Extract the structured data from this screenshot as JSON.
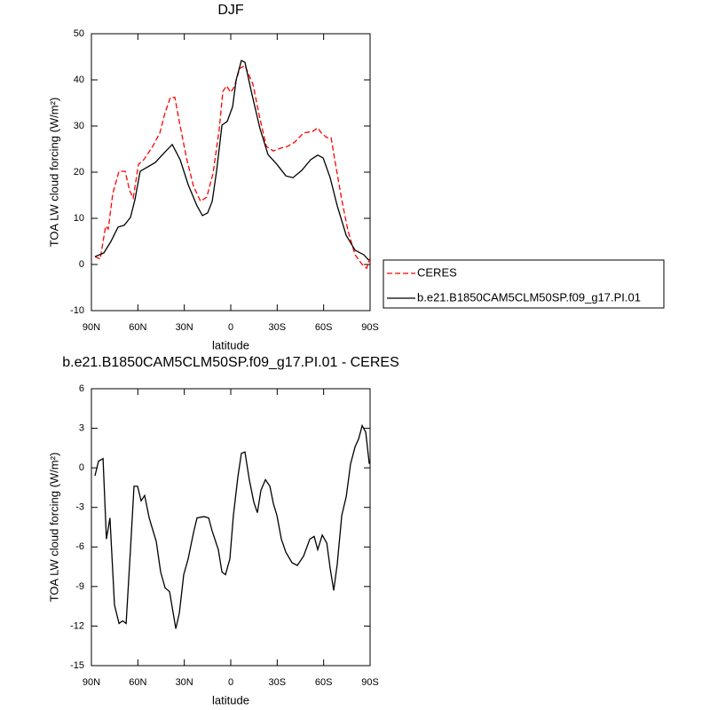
{
  "chart_data": [
    {
      "type": "line",
      "title": "DJF",
      "xlabel": "latitude",
      "ylabel": "TOA LW cloud forcing (W/m²)",
      "xlim": [
        90,
        -90
      ],
      "ylim": [
        -10,
        50
      ],
      "xticks": [
        {
          "value": 90,
          "label": "90N"
        },
        {
          "value": 60,
          "label": "60N"
        },
        {
          "value": 30,
          "label": "30N"
        },
        0,
        {
          "value": -30,
          "label": "30S"
        },
        {
          "value": -60,
          "label": "60S"
        },
        {
          "value": -90,
          "label": "90S"
        }
      ],
      "yticks": [
        -10,
        0,
        10,
        20,
        30,
        40,
        50
      ],
      "legend": "right",
      "series": [
        {
          "name": "CERES",
          "color": "#ff0000",
          "dash": true,
          "x": [
            87.7,
            84.3,
            80.8,
            79.1,
            76.2,
            72.2,
            68.2,
            65.3,
            63,
            59.6,
            56.2,
            50.4,
            45.8,
            42.4,
            39,
            36.1,
            32.7,
            28.6,
            24,
            19.5,
            15.5,
            11.4,
            7.4,
            5.1,
            2.8,
            0,
            -2.3,
            -5.8,
            -9.2,
            -14.4,
            -18.4,
            -23,
            -27.5,
            -32.1,
            -36.7,
            -41.3,
            -47,
            -52.8,
            -56.2,
            -58.5,
            -62,
            -64.8,
            -67.7,
            -71.7,
            -75.7,
            -80.3,
            -84.9,
            -87.8,
            -89.5
          ],
          "values": [
            1.7,
            1.2,
            8.3,
            7.7,
            15.4,
            20.2,
            20.2,
            16,
            14.4,
            21.7,
            22.7,
            25.6,
            28.5,
            32.9,
            36.2,
            36.2,
            30,
            23.1,
            16.9,
            13.7,
            14.6,
            19.8,
            29.4,
            37.5,
            38.7,
            37.3,
            38.5,
            42.5,
            43.1,
            39,
            32.3,
            25.6,
            24.6,
            25.2,
            25.6,
            26.5,
            28.5,
            28.8,
            29.6,
            28.5,
            27.5,
            27.5,
            21.7,
            14,
            7.3,
            2.1,
            0,
            -0.8,
            1.2
          ]
        },
        {
          "name": "b.e21.B1850CAM5CLM50SP.f09_g17.PI.01",
          "color": "#000000",
          "dash": false,
          "x": [
            87.7,
            82,
            77.4,
            72.8,
            68.8,
            64.8,
            61.9,
            58.5,
            54.4,
            48.7,
            43,
            37.8,
            32.7,
            27.5,
            21.8,
            18.3,
            14.9,
            12,
            9.2,
            5.7,
            2.3,
            -1.2,
            -3.5,
            -6.9,
            -9.2,
            -13.8,
            -18.9,
            -24.1,
            -29.8,
            -35.6,
            -40.2,
            -45.9,
            -51.6,
            -56.2,
            -59.7,
            -64.2,
            -68.8,
            -74.6,
            -80.3,
            -86,
            -88.9
          ],
          "values": [
            1.7,
            2.5,
            5,
            8.1,
            8.5,
            10.2,
            14,
            20.2,
            21,
            22.1,
            24.2,
            26,
            22.7,
            17.3,
            12.7,
            10.6,
            11.2,
            13.7,
            20.2,
            30.2,
            31,
            34.2,
            40,
            44.2,
            43.8,
            36.7,
            29.4,
            23.8,
            21.7,
            19.2,
            18.8,
            20.4,
            22.7,
            23.7,
            23.1,
            18.8,
            12.7,
            6.3,
            3.1,
            2.1,
            1
          ]
        }
      ]
    },
    {
      "type": "line",
      "title": "b.e21.B1850CAM5CLM50SP.f09_g17.PI.01 - CERES",
      "xlabel": "latitude",
      "ylabel": "TOA LW cloud forcing (W/m²)",
      "xlim": [
        90,
        -90
      ],
      "ylim": [
        -15,
        6
      ],
      "xticks": [
        {
          "value": 90,
          "label": "90N"
        },
        {
          "value": 60,
          "label": "60N"
        },
        {
          "value": 30,
          "label": "30N"
        },
        0,
        {
          "value": -30,
          "label": "30S"
        },
        {
          "value": -60,
          "label": "60S"
        },
        {
          "value": -90,
          "label": "90S"
        }
      ],
      "yticks": [
        -15,
        -12,
        -9,
        -6,
        -3,
        0,
        3,
        6
      ],
      "series": [
        {
          "color": "#000000",
          "dash": false,
          "x": [
            87.7,
            85.4,
            82.5,
            80.3,
            78,
            75.1,
            72.2,
            69.9,
            67.6,
            64.8,
            62.5,
            60.2,
            57.9,
            55.6,
            52.7,
            48.1,
            45.3,
            42.4,
            39.5,
            35.5,
            33.2,
            30.4,
            27.5,
            24,
            21.8,
            17.2,
            14.3,
            12,
            8,
            5.7,
            3.4,
            0.6,
            -1.7,
            -4.6,
            -6.9,
            -9.2,
            -12,
            -14.9,
            -17.2,
            -19.5,
            -22.4,
            -25.3,
            -27.5,
            -29.8,
            -32.7,
            -35.6,
            -39.6,
            -43,
            -47,
            -51.1,
            -53.9,
            -56.2,
            -59.1,
            -62,
            -64.2,
            -66.5,
            -68.8,
            -71.7,
            -74.6,
            -77.4,
            -80.3,
            -82.6,
            -84.9,
            -87.2,
            -89.5
          ],
          "values": [
            -0.6,
            0.5,
            0.7,
            -5.4,
            -3.8,
            -10.4,
            -11.8,
            -11.6,
            -11.8,
            -6.2,
            -1.4,
            -1.4,
            -2.5,
            -2.1,
            -3.8,
            -5.6,
            -7.9,
            -9.1,
            -9.4,
            -12.2,
            -11,
            -8.1,
            -6.9,
            -4.9,
            -3.8,
            -3.7,
            -3.8,
            -4.8,
            -6.2,
            -7.9,
            -8.1,
            -6.9,
            -3.6,
            -0.7,
            1.1,
            1.2,
            -0.9,
            -2.6,
            -3.4,
            -1.7,
            -0.9,
            -1.4,
            -2.7,
            -3.6,
            -5.4,
            -6.4,
            -7.2,
            -7.4,
            -6.7,
            -5.4,
            -5.2,
            -6.2,
            -5.1,
            -5.7,
            -7.6,
            -9.3,
            -7.3,
            -3.6,
            -2.2,
            0.3,
            1.6,
            2.2,
            3.2,
            2.7,
            0.3
          ]
        }
      ]
    }
  ]
}
